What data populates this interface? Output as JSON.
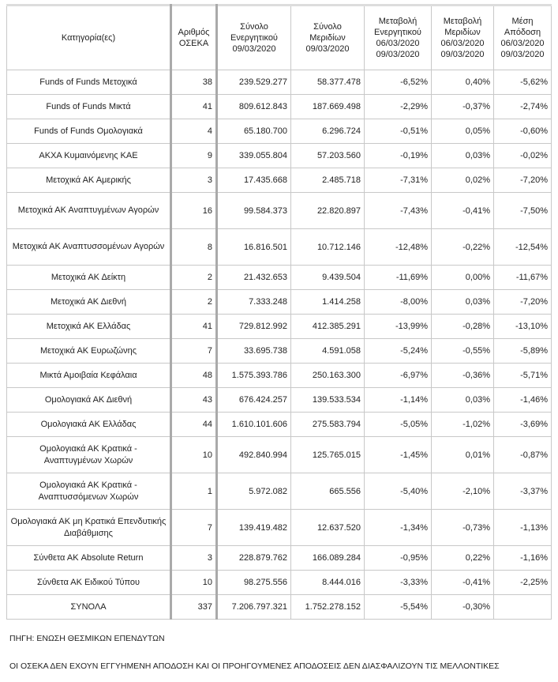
{
  "headers": [
    "Κατηγορία(ες)",
    "Αριθμός ΟΣΕΚΑ",
    "Σύνολο Ενεργητικού 09/03/2020",
    "Σύνολο Μεριδίων 09/03/2020",
    "Μεταβολή Ενεργητικού 06/03/2020 09/03/2020",
    "Μεταβολή Μεριδίων 06/03/2020 09/03/2020",
    "Μέση Απόδοση 06/03/2020 09/03/2020"
  ],
  "rows": [
    [
      "Funds of Funds Μετοχικά",
      "38",
      "239.529.277",
      "58.377.478",
      "-6,52%",
      "0,40%",
      "-5,62%"
    ],
    [
      "Funds of Funds Μικτά",
      "41",
      "809.612.843",
      "187.669.498",
      "-2,29%",
      "-0,37%",
      "-2,74%"
    ],
    [
      "Funds of Funds Ομολογιακά",
      "4",
      "65.180.700",
      "6.296.724",
      "-0,51%",
      "0,05%",
      "-0,60%"
    ],
    [
      "ΑΚΧΑ Κυμαινόμενης ΚΑΕ",
      "9",
      "339.055.804",
      "57.203.560",
      "-0,19%",
      "0,03%",
      "-0,02%"
    ],
    [
      "Μετοχικά ΑΚ Αμερικής",
      "3",
      "17.435.668",
      "2.485.718",
      "-7,31%",
      "0,02%",
      "-7,20%"
    ],
    [
      "Μετοχικά ΑΚ Αναπτυγμένων Αγορών",
      "16",
      "99.584.373",
      "22.820.897",
      "-7,43%",
      "-0,41%",
      "-7,50%"
    ],
    [
      "Μετοχικά ΑΚ Αναπτυσσομένων Αγορών",
      "8",
      "16.816.501",
      "10.712.146",
      "-12,48%",
      "-0,22%",
      "-12,54%"
    ],
    [
      "Μετοχικά ΑΚ Δείκτη",
      "2",
      "21.432.653",
      "9.439.504",
      "-11,69%",
      "0,00%",
      "-11,67%"
    ],
    [
      "Μετοχικά ΑΚ Διεθνή",
      "2",
      "7.333.248",
      "1.414.258",
      "-8,00%",
      "0,03%",
      "-7,20%"
    ],
    [
      "Μετοχικά ΑΚ Ελλάδας",
      "41",
      "729.812.992",
      "412.385.291",
      "-13,99%",
      "-0,28%",
      "-13,10%"
    ],
    [
      "Μετοχικά ΑΚ Ευρωζώνης",
      "7",
      "33.695.738",
      "4.591.058",
      "-5,24%",
      "-0,55%",
      "-5,89%"
    ],
    [
      "Μικτά Αμοιβαία Κεφάλαια",
      "48",
      "1.575.393.786",
      "250.163.300",
      "-6,97%",
      "-0,36%",
      "-5,71%"
    ],
    [
      "Ομολογιακά ΑΚ Διεθνή",
      "43",
      "676.424.257",
      "139.533.534",
      "-1,14%",
      "0,03%",
      "-1,46%"
    ],
    [
      "Ομολογιακά ΑΚ Ελλάδας",
      "44",
      "1.610.101.606",
      "275.583.794",
      "-5,05%",
      "-1,02%",
      "-3,69%"
    ],
    [
      "Ομολογιακά ΑΚ Κρατικά - Αναπτυγμένων Χωρών",
      "10",
      "492.840.994",
      "125.765.015",
      "-1,45%",
      "0,01%",
      "-0,87%"
    ],
    [
      "Ομολογιακά ΑΚ Κρατικά - Αναπτυσσόμενων Χωρών",
      "1",
      "5.972.082",
      "665.556",
      "-5,40%",
      "-2,10%",
      "-3,37%"
    ],
    [
      "Ομολογιακά ΑΚ μη Κρατικά Επενδυτικής Διαβάθμισης",
      "7",
      "139.419.482",
      "12.637.520",
      "-1,34%",
      "-0,73%",
      "-1,13%"
    ],
    [
      "Σύνθετα ΑΚ Absolute Return",
      "3",
      "228.879.762",
      "166.089.284",
      "-0,95%",
      "0,22%",
      "-1,16%"
    ],
    [
      "Σύνθετα ΑΚ Ειδικού Τύπου",
      "10",
      "98.275.556",
      "8.444.016",
      "-3,33%",
      "-0,41%",
      "-2,25%"
    ],
    [
      "ΣΥΝΟΛΑ",
      "337",
      "7.206.797.321",
      "1.752.278.152",
      "-5,54%",
      "-0,30%",
      ""
    ]
  ],
  "double_rows": [
    5,
    6,
    14,
    15,
    16
  ],
  "footer": {
    "source": "ΠΗΓΗ: ΕΝΩΣΗ ΘΕΣΜΙΚΩΝ ΕΠΕΝΔΥΤΩΝ",
    "disclaimer": "ΟΙ ΟΣΕΚΑ ΔΕΝ ΕΧΟΥΝ ΕΓΓΥΗΜΕΝΗ ΑΠΟΔΟΣΗ ΚΑΙ ΟΙ ΠΡΟΗΓΟΥΜΕΝΕΣ ΑΠΟΔΟΣΕΙΣ ΔΕΝ ΔΙΑΣΦΑΛΙΖΟΥΝ ΤΙΣ ΜΕΛΛΟΝΤΙΚΕΣ"
  }
}
